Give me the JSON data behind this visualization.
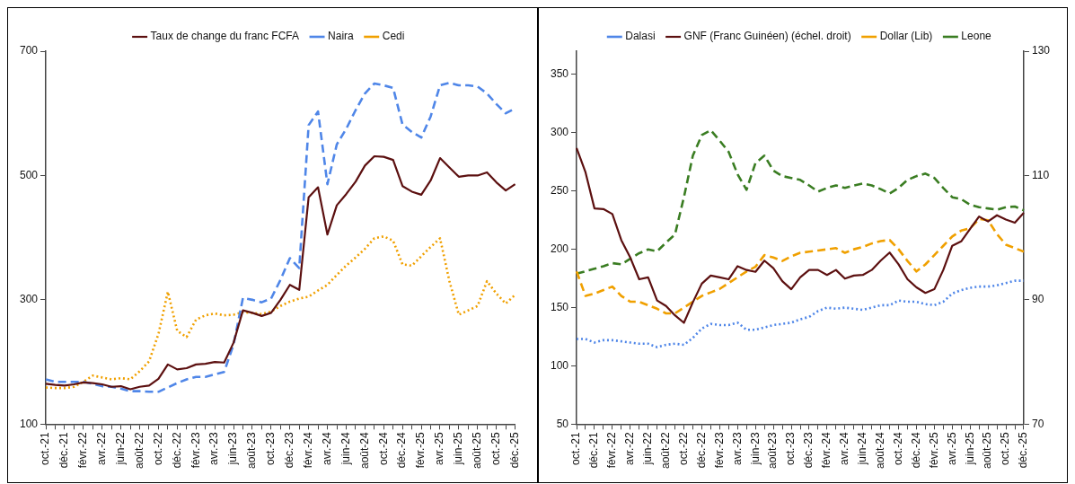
{
  "chart_data": [
    {
      "type": "line",
      "categories": [
        "oct.-21",
        null,
        "déc.-21",
        null,
        "févr.-22",
        null,
        "avr.-22",
        null,
        "juin-22",
        null,
        "août-22",
        null,
        "oct.-22",
        null,
        "déc.-22",
        null,
        "févr.-23",
        null,
        "avr.-23",
        null,
        "juin-23",
        null,
        "août-23",
        null,
        "oct.-23",
        null,
        "déc.-23",
        null,
        "févr.-24",
        null,
        "avr.-24",
        null,
        "juin-24",
        null,
        "août-24",
        null,
        "oct.-24",
        null,
        "déc.-24",
        null,
        "févr.-25",
        null,
        "avr.-25",
        null,
        "juin-25",
        null,
        "août-25",
        null,
        "oct.-25",
        null,
        "déc.-25"
      ],
      "ylim": [
        100,
        700
      ],
      "yticks": [
        100,
        300,
        500,
        700
      ],
      "grid": false,
      "legend": "top",
      "marker": "none",
      "series": [
        {
          "name": "Taux de change du franc FCFA",
          "color": "#5c1010",
          "line_style": "solid",
          "values": [
            165,
            163,
            162,
            164,
            167,
            166,
            164,
            160,
            161,
            156,
            160,
            162,
            173,
            196,
            188,
            190,
            196,
            197,
            200,
            199,
            231,
            283,
            279,
            274,
            279,
            300,
            324,
            316,
            465,
            481,
            405,
            452,
            470,
            490,
            516,
            531,
            530,
            525,
            483,
            474,
            469,
            492,
            528,
            513,
            498,
            500,
            500,
            505,
            489,
            476,
            486
          ]
        },
        {
          "name": "Naira",
          "color": "#4f86e8",
          "line_style": "dashed",
          "values": [
            172,
            168,
            168,
            168,
            168,
            165,
            161,
            160,
            157,
            153,
            153,
            152,
            152,
            159,
            166,
            172,
            176,
            176,
            180,
            184,
            228,
            303,
            300,
            296,
            302,
            332,
            367,
            351,
            581,
            603,
            486,
            550,
            575,
            605,
            632,
            648,
            645,
            641,
            582,
            570,
            561,
            595,
            645,
            649,
            645,
            645,
            643,
            632,
            615,
            600,
            608
          ]
        },
        {
          "name": "Cedi",
          "color": "#f0a000",
          "line_style": "dotted",
          "values": [
            159,
            158,
            158,
            160,
            168,
            178,
            175,
            172,
            174,
            172,
            185,
            201,
            245,
            313,
            250,
            240,
            268,
            275,
            278,
            275,
            276,
            280,
            279,
            277,
            281,
            290,
            297,
            302,
            305,
            315,
            324,
            340,
            355,
            368,
            382,
            399,
            402,
            395,
            357,
            355,
            370,
            385,
            399,
            330,
            276,
            283,
            290,
            330,
            310,
            294,
            308
          ]
        }
      ]
    },
    {
      "type": "line",
      "categories": [
        "oct.-21",
        null,
        "déc.-21",
        null,
        "févr.-22",
        null,
        "avr.-22",
        null,
        "juin-22",
        null,
        "août-22",
        null,
        "oct.-22",
        null,
        "déc.-22",
        null,
        "févr.-23",
        null,
        "avr.-23",
        null,
        "juin-23",
        null,
        "août-23",
        null,
        "oct.-23",
        null,
        "déc.-23",
        null,
        "févr.-24",
        null,
        "avr.-24",
        null,
        "juin-24",
        null,
        "août-24",
        null,
        "oct.-24",
        null,
        "déc.-24",
        null,
        "févr.-25",
        null,
        "avr.-25",
        null,
        "juin-25",
        null,
        "août-25",
        null,
        "oct.-25",
        null,
        "déc.-25"
      ],
      "ylim": [
        50,
        370
      ],
      "yticks": [
        50,
        100,
        150,
        200,
        250,
        300,
        350
      ],
      "y2lim": [
        70,
        130
      ],
      "y2ticks": [
        70,
        90,
        110,
        130
      ],
      "grid": false,
      "legend": "top",
      "marker": "none",
      "series": [
        {
          "name": "Dalasi",
          "color": "#4f86e8",
          "line_style": "dotted",
          "values": [
            123,
            123,
            120,
            122,
            122,
            121,
            120,
            119,
            119,
            116,
            118,
            119,
            118,
            124,
            132,
            136,
            135,
            135,
            137,
            131,
            131,
            133,
            135,
            136,
            137,
            140,
            142,
            147,
            150,
            149,
            150,
            149,
            148,
            150,
            152,
            152,
            156,
            155,
            155,
            153,
            152,
            155,
            162,
            165,
            167,
            168,
            168,
            169,
            171,
            173,
            173
          ]
        },
        {
          "name": "GNF (Franc Guinéen) (échel. droit)",
          "color": "#5c1010",
          "line_style": "solid",
          "axis": "y2",
          "values": [
            114.4,
            110.5,
            104.7,
            104.6,
            103.8,
            99.6,
            96.8,
            93.3,
            93.6,
            89.9,
            89,
            87.5,
            86.3,
            89.6,
            92.6,
            93.9,
            93.6,
            93.3,
            95.4,
            94.8,
            94.5,
            96.3,
            95.1,
            93,
            91.7,
            93.6,
            94.8,
            94.8,
            94,
            94.8,
            93.4,
            93.9,
            94,
            94.8,
            96.3,
            97.6,
            95.7,
            93.3,
            92,
            91.1,
            91.7,
            94.8,
            98.7,
            99.4,
            101.4,
            103.4,
            102.6,
            103.6,
            102.9,
            102.4,
            104
          ]
        },
        {
          "name": "Dollar (Lib)",
          "color": "#f0a000",
          "line_style": "dashed",
          "values": [
            181,
            160,
            162,
            165,
            168,
            160,
            155,
            155,
            152,
            149,
            145,
            145,
            150,
            155,
            160,
            163,
            166,
            171,
            176,
            181,
            185,
            195,
            193,
            190,
            194,
            197,
            198,
            199,
            200,
            201,
            197,
            200,
            202,
            205,
            207,
            208,
            200,
            190,
            181,
            187,
            195,
            203,
            211,
            216,
            218,
            226,
            225,
            213,
            204,
            201,
            198
          ]
        },
        {
          "name": "Leone",
          "color": "#3a7d22",
          "line_style": "dashed",
          "axis": "y2",
          "values": [
            94.2,
            94.6,
            95,
            95.4,
            95.9,
            95.7,
            96.6,
            97.5,
            98.1,
            97.8,
            99.2,
            100.5,
            106.5,
            113.2,
            116.5,
            117.3,
            115.6,
            113.8,
            110.2,
            107.7,
            112,
            113.2,
            110.8,
            109.9,
            109.6,
            109.3,
            108.4,
            107.4,
            108,
            108.4,
            108,
            108.4,
            108.7,
            108.4,
            107.8,
            107.1,
            108,
            109.3,
            109.9,
            110.3,
            109.6,
            108,
            106.5,
            106.2,
            105.3,
            104.9,
            104.7,
            104.5,
            104.9,
            105,
            104.4
          ]
        }
      ]
    }
  ]
}
